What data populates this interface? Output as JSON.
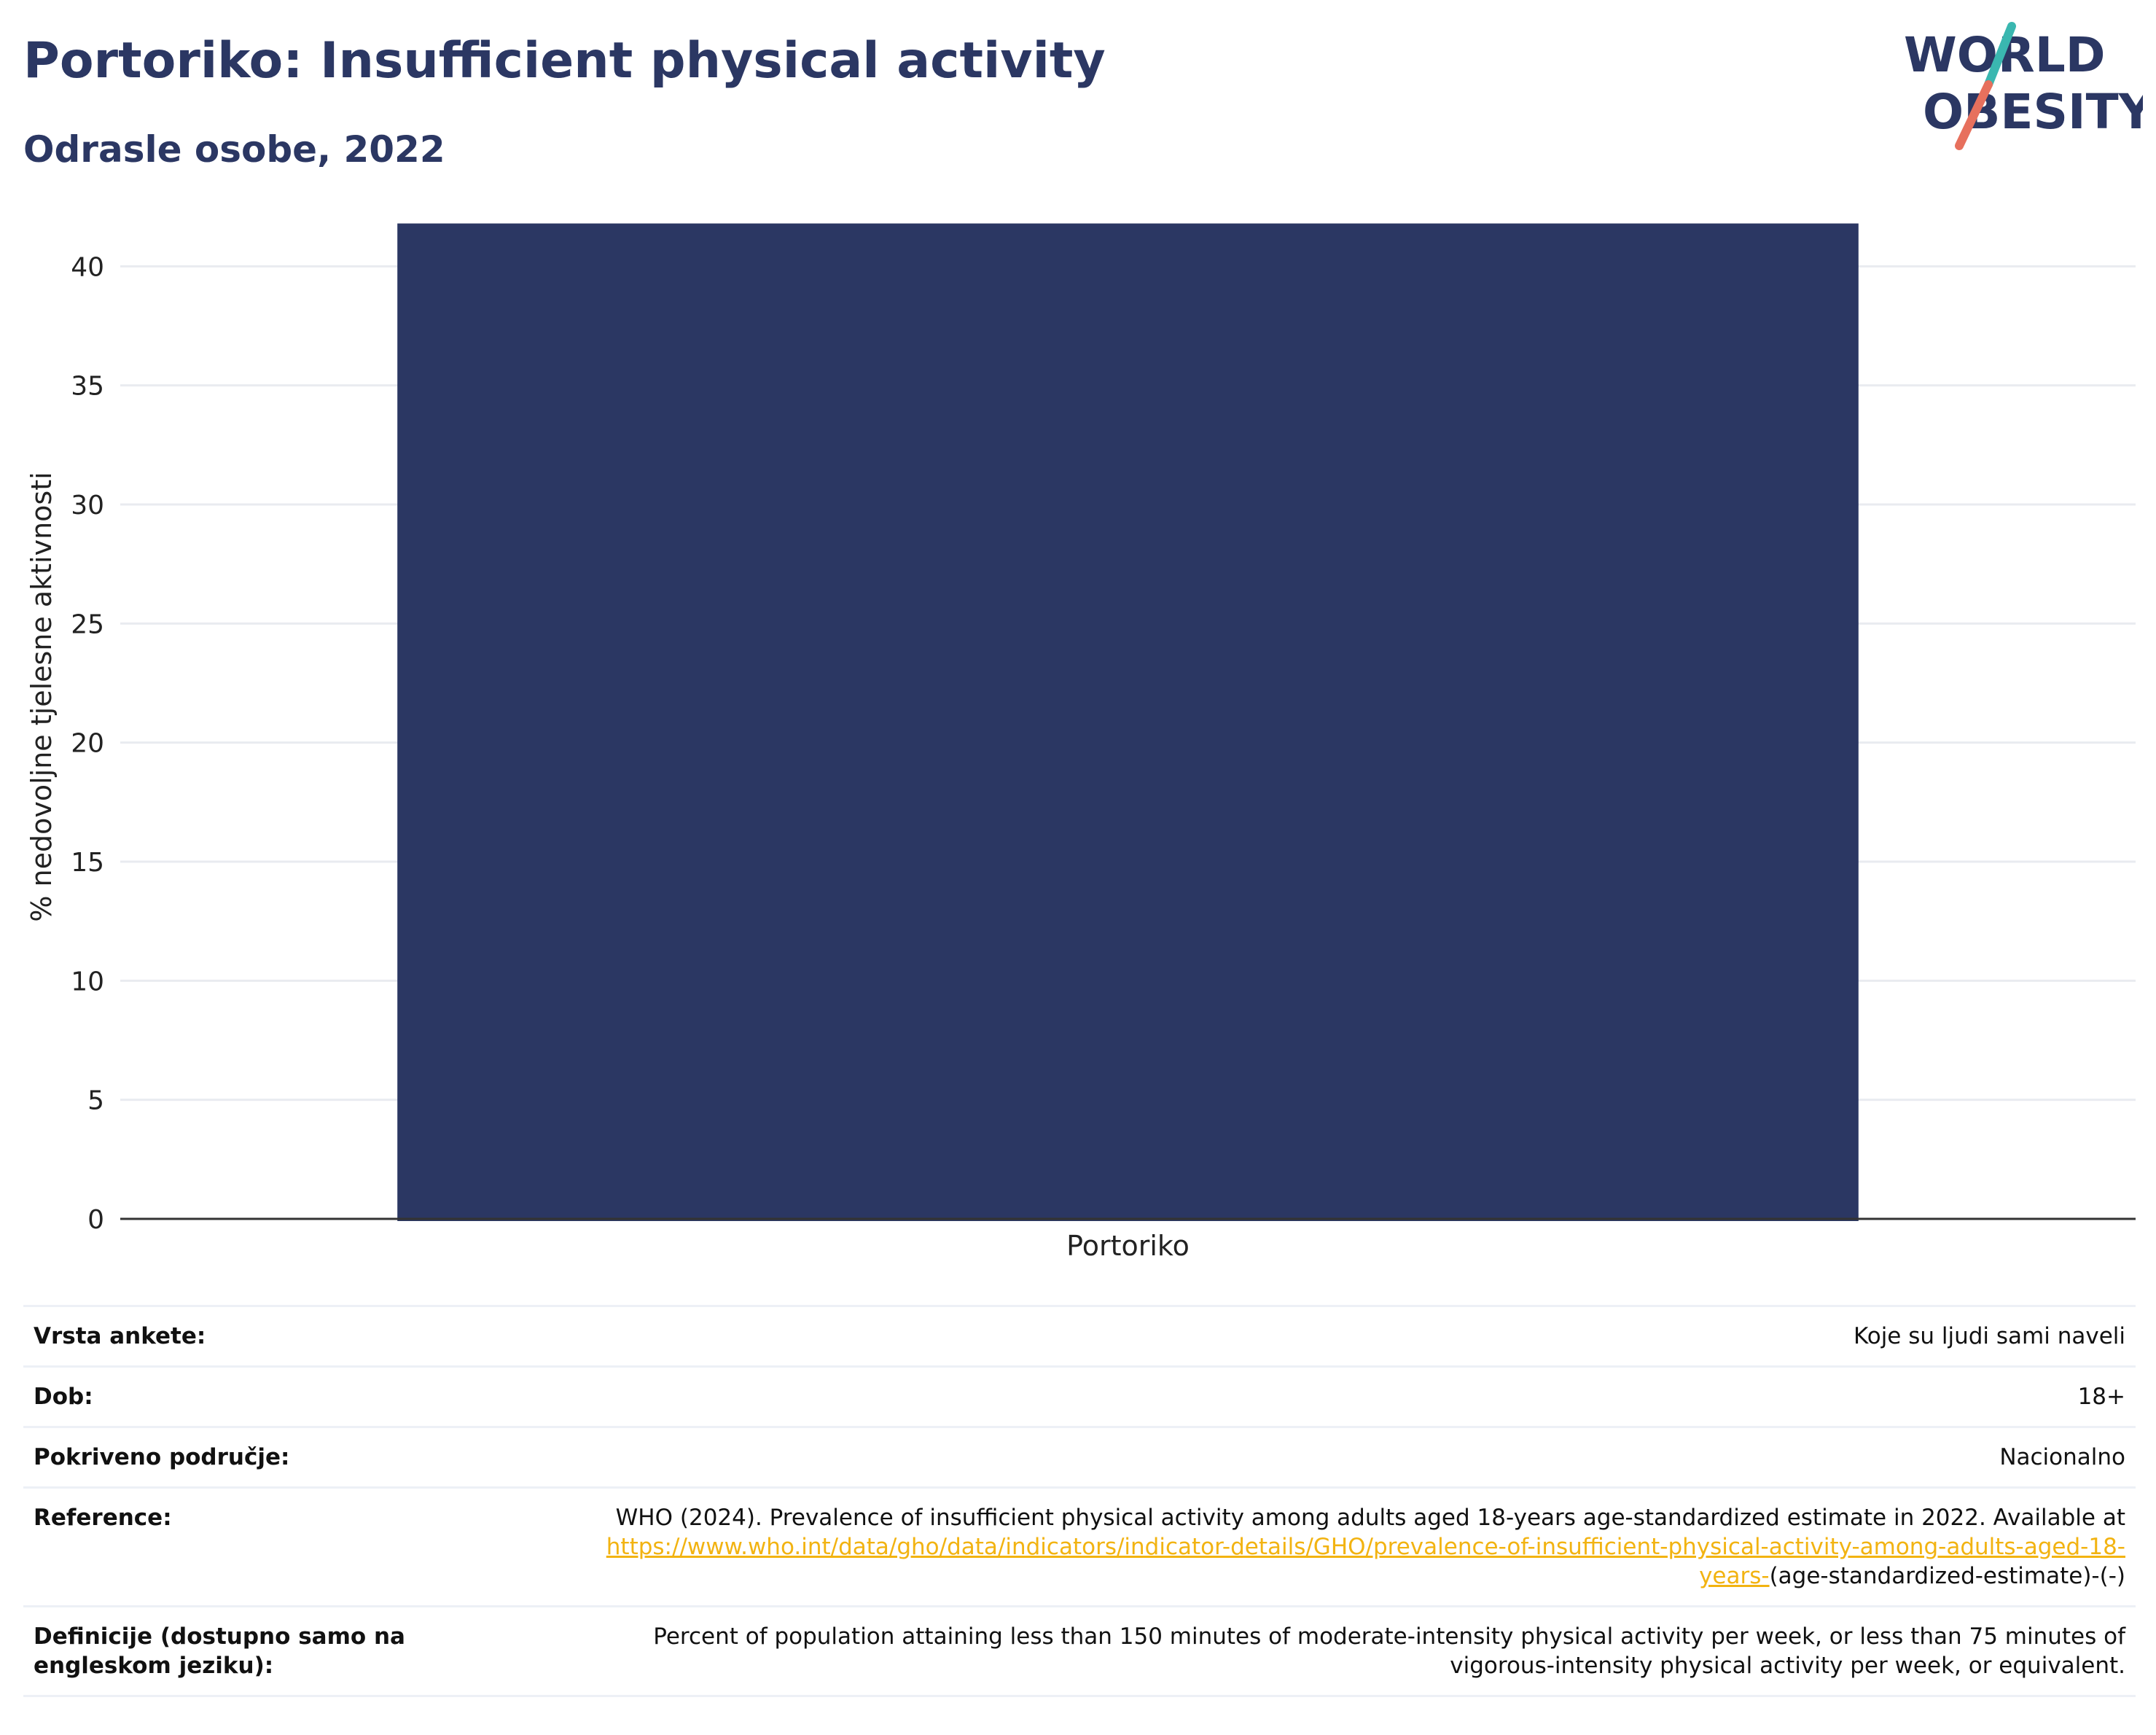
{
  "header": {
    "title": "Portoriko: Insufficient physical activity",
    "subtitle": "Odrasle osobe, 2022"
  },
  "logo": {
    "line1": "WORLD",
    "line2": "OBESITY",
    "colors": {
      "text": "#2b3763",
      "slash_top": "#3ab7b0",
      "slash_bottom": "#e7705d"
    }
  },
  "chart_data": {
    "type": "bar",
    "categories": [
      "Portoriko"
    ],
    "values": [
      41.8
    ],
    "title": "",
    "xlabel": "",
    "ylabel": "% nedovoljne tjelesne aktivnosti",
    "ylim": [
      0,
      42
    ],
    "yticks": [
      0,
      5,
      10,
      15,
      20,
      25,
      30,
      35,
      40
    ],
    "grid": true,
    "bar_color": "#2b3763"
  },
  "meta": {
    "survey_label": "Vrsta ankete:",
    "survey_value": "Koje su ljudi sami naveli",
    "age_label": "Dob:",
    "age_value": "18+",
    "coverage_label": "Pokriveno područje:",
    "coverage_value": "Nacionalno",
    "reference_label": "Reference:",
    "reference_text": "WHO (2024). Prevalence of insufficient physical activity among adults aged 18-years age-standardized estimate in 2022. Available at",
    "reference_link": "https://www.who.int/data/gho/data/indicators/indicator-details/GHO/prevalence-of-insufficient-physical-activity-among-adults-aged-18-years-",
    "reference_suffix": "(age-standardized-estimate)-(-)",
    "definition_label": "Definicije (dostupno samo na engleskom jeziku):",
    "definition_value": "Percent of population attaining less than 150 minutes of moderate-intensity physical activity per week, or less than 75 minutes of vigorous-intensity physical activity per week, or equivalent."
  }
}
